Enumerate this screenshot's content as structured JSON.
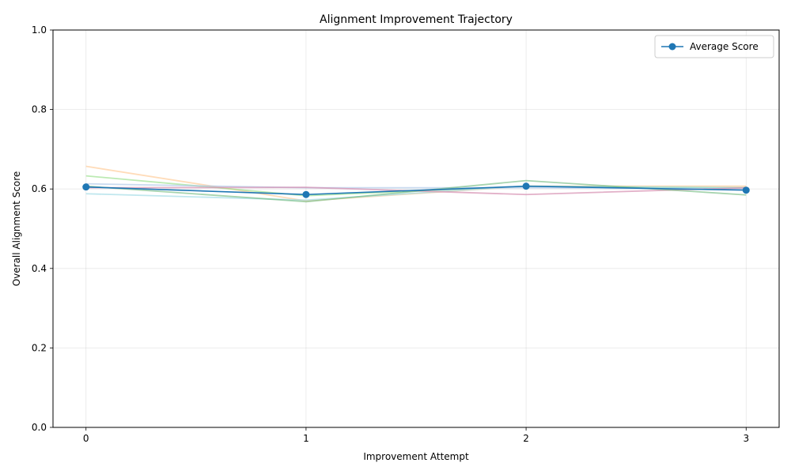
{
  "chart_data": {
    "type": "line",
    "title": "Alignment Improvement Trajectory",
    "xlabel": "Improvement Attempt",
    "ylabel": "Overall Alignment Score",
    "x": [
      0,
      1,
      2,
      3
    ],
    "xticks": [
      "0",
      "1",
      "2",
      "3"
    ],
    "yticks": [
      "0.0",
      "0.2",
      "0.4",
      "0.6",
      "0.8",
      "1.0"
    ],
    "xlim": [
      -0.15,
      3.15
    ],
    "ylim": [
      0,
      1
    ],
    "grid": true,
    "legend_position": "top-right",
    "series": [
      {
        "values": [
          0.657,
          0.57,
          0.607,
          0.607
        ],
        "color": "#ffbf80",
        "opacity": 0.55,
        "role": "background"
      },
      {
        "values": [
          0.633,
          0.583,
          0.607,
          0.603
        ],
        "color": "#98df8a",
        "opacity": 0.65,
        "role": "background"
      },
      {
        "values": [
          0.588,
          0.572,
          0.607,
          0.603
        ],
        "color": "#9edae5",
        "opacity": 0.65,
        "role": "background"
      },
      {
        "values": [
          0.613,
          0.603,
          0.603,
          0.6
        ],
        "color": "#aec7e8",
        "opacity": 0.65,
        "role": "background"
      },
      {
        "values": [
          0.603,
          0.604,
          0.586,
          0.603
        ],
        "color": "#d68fb0",
        "opacity": 0.7,
        "role": "background"
      },
      {
        "values": [
          0.607,
          0.568,
          0.621,
          0.585
        ],
        "color": "#6bb87a",
        "opacity": 0.6,
        "role": "background"
      },
      {
        "name": "Average Score",
        "values": [
          0.605,
          0.586,
          0.607,
          0.597
        ],
        "color": "#1f77b4",
        "opacity": 1,
        "role": "average"
      }
    ]
  }
}
